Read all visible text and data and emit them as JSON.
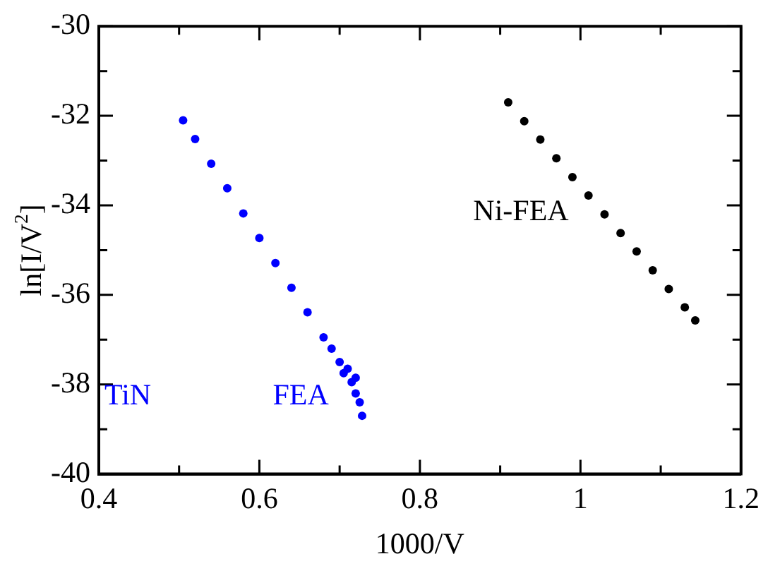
{
  "chart_data": {
    "type": "scatter",
    "xlabel": "1000/V",
    "ylabel": "ln[I/V$^{2}$]",
    "xlim": [
      0.4,
      1.2
    ],
    "ylim": [
      -40,
      -30
    ],
    "xticks": [
      0.4,
      {
        "value": 0.5,
        "label": null
      },
      0.6,
      {
        "value": 0.7,
        "label": null
      },
      0.8,
      {
        "value": 0.9,
        "label": null
      },
      1,
      {
        "value": 1.1,
        "label": null
      },
      1.2
    ],
    "yticks": [
      -40,
      {
        "value": -39,
        "label": null
      },
      -38,
      {
        "value": -37,
        "label": null
      },
      -36,
      {
        "value": -35,
        "label": null
      },
      -34,
      {
        "value": -33,
        "label": null
      },
      -32,
      {
        "value": -31,
        "label": null
      },
      -30
    ],
    "grid": false,
    "legend": false,
    "marker": "circle",
    "series": [
      {
        "name": "TiN FEA",
        "color": "#0000ff",
        "x": [
          0.505,
          0.52,
          0.54,
          0.56,
          0.58,
          0.6,
          0.62,
          0.64,
          0.66,
          0.68,
          0.69,
          0.7,
          0.705,
          0.71,
          0.715,
          0.72,
          0.72,
          0.725,
          0.728
        ],
        "values": [
          -32.1,
          -32.52,
          -33.07,
          -33.62,
          -34.18,
          -34.73,
          -35.29,
          -35.84,
          -36.39,
          -36.95,
          -37.2,
          -37.5,
          -37.75,
          -37.65,
          -37.95,
          -37.85,
          -38.2,
          -38.4,
          -38.7
        ]
      },
      {
        "name": "Ni-FEA",
        "color": "#000000",
        "x": [
          0.91,
          0.93,
          0.95,
          0.97,
          0.99,
          1.01,
          1.03,
          1.05,
          1.07,
          1.09,
          1.11,
          1.13,
          1.143
        ],
        "values": [
          -31.7,
          -32.12,
          -32.53,
          -32.95,
          -33.37,
          -33.78,
          -34.2,
          -34.62,
          -35.03,
          -35.45,
          -35.87,
          -36.28,
          -36.57
        ]
      }
    ]
  }
}
